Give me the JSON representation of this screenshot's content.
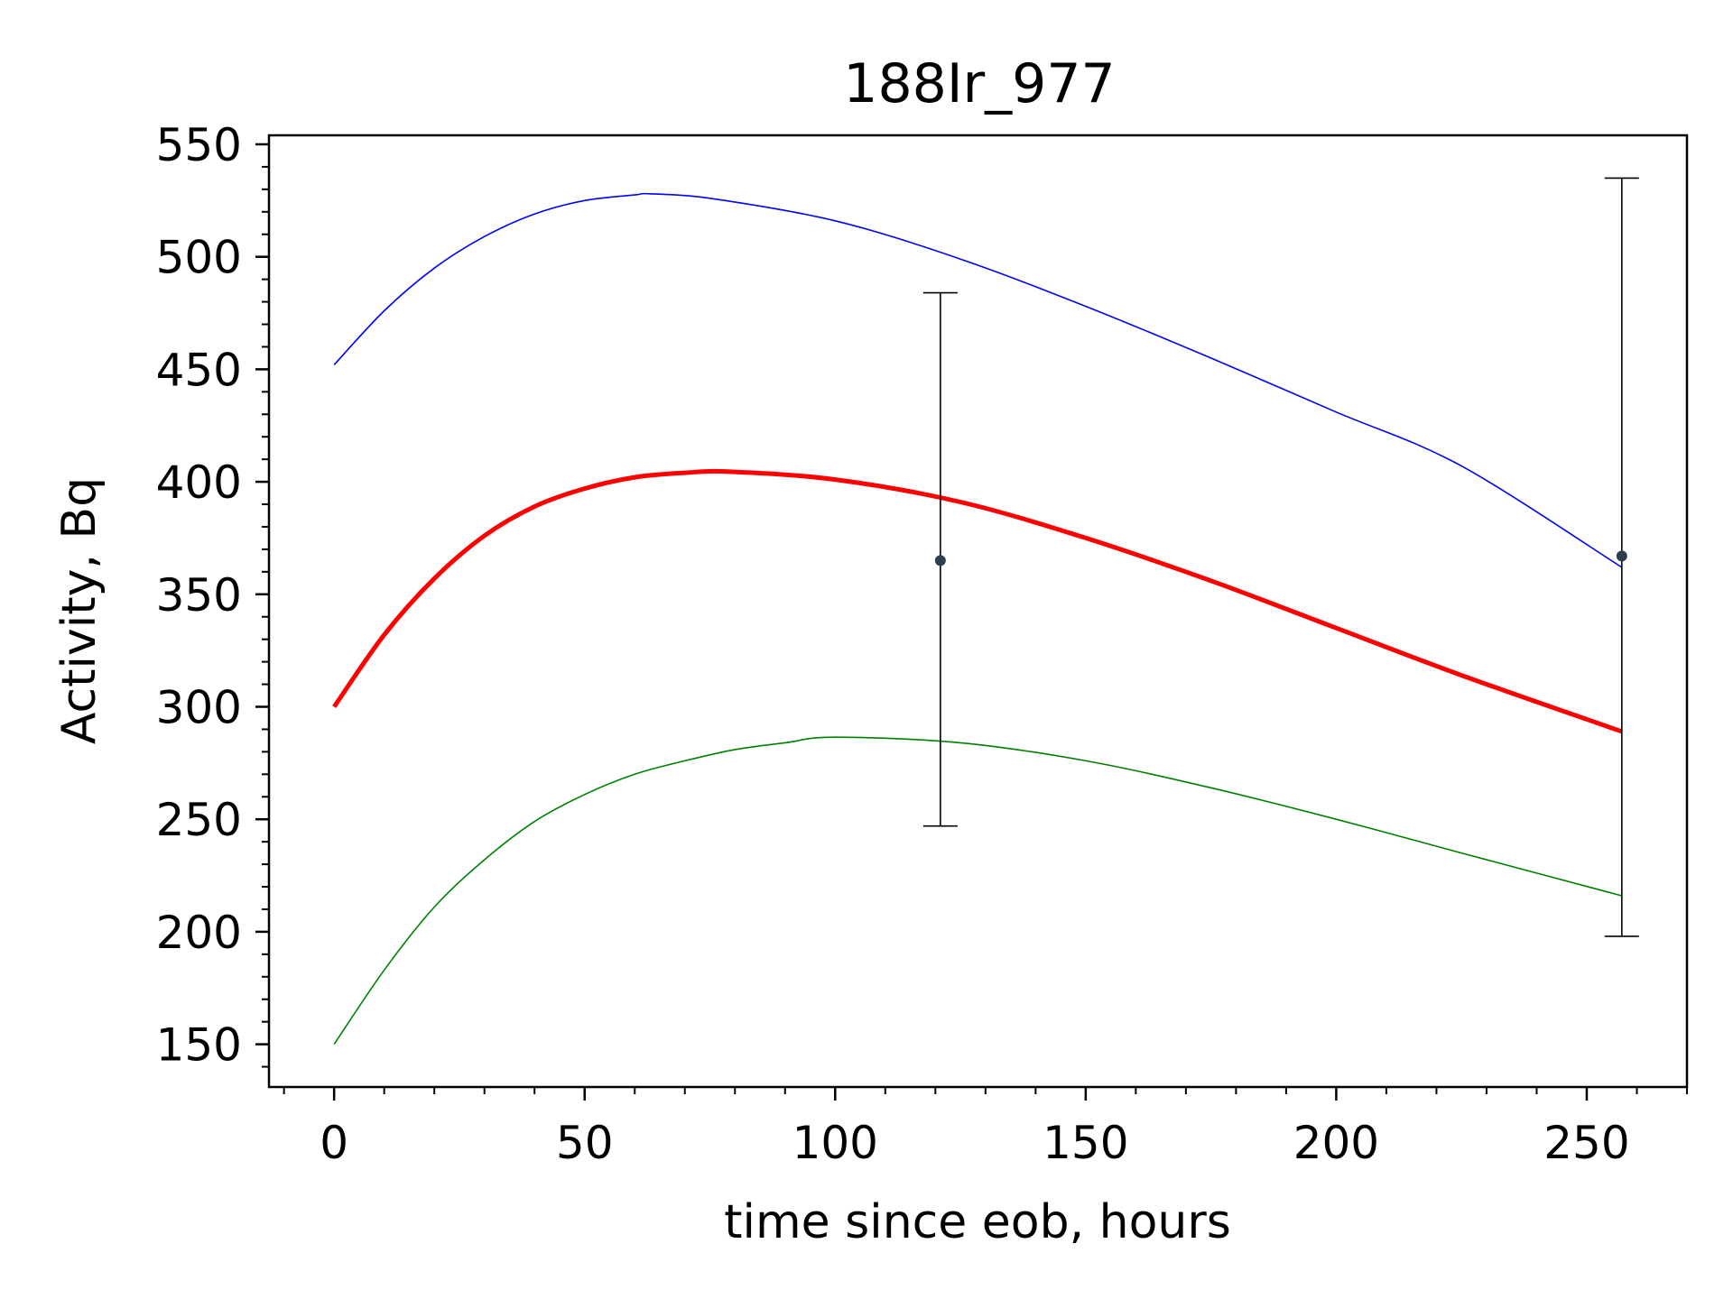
{
  "chart_data": {
    "type": "line",
    "title": "188Ir_977",
    "xlabel": "time since eob, hours",
    "ylabel": "Activity, Bq",
    "xlim": [
      -13,
      270
    ],
    "ylim": [
      131,
      554
    ],
    "xticks": [
      0,
      50,
      100,
      150,
      200,
      250
    ],
    "yticks": [
      150,
      200,
      250,
      300,
      350,
      400,
      450,
      500,
      550
    ],
    "x_minor_step": 10,
    "y_minor_step": 10,
    "grid": false,
    "legend": "none",
    "series": [
      {
        "color": "#0000ff",
        "style": "thin",
        "x": [
          0,
          10,
          20,
          30,
          40,
          50,
          60,
          63,
          75,
          100,
          125,
          150,
          175,
          200,
          225,
          257
        ],
        "y": [
          452,
          476,
          495,
          509,
          519,
          525,
          527.5,
          528,
          526,
          516,
          499,
          478,
          455,
          431,
          407,
          362
        ]
      },
      {
        "color": "#ff0000",
        "style": "thick",
        "x": [
          0,
          10,
          20,
          30,
          40,
          50,
          60,
          70,
          79,
          100,
          125,
          150,
          175,
          200,
          225,
          257
        ],
        "y": [
          300,
          332,
          357,
          376,
          389,
          397,
          402,
          404,
          404.5,
          401,
          391,
          375,
          356,
          335,
          314,
          289
        ]
      },
      {
        "color": "#008000",
        "style": "thin",
        "x": [
          0,
          10,
          20,
          30,
          40,
          50,
          60,
          70,
          80,
          90,
          100,
          125,
          150,
          175,
          200,
          225,
          257
        ],
        "y": [
          150,
          183,
          211,
          232,
          249,
          261,
          270,
          276,
          281,
          284,
          286.5,
          284,
          276,
          264,
          250,
          235,
          216
        ]
      }
    ],
    "measurements": [
      {
        "x": 121,
        "y": 365,
        "yerr_low": 247,
        "yerr_high": 484
      },
      {
        "x": 257,
        "y": 367,
        "yerr_low": 198,
        "yerr_high": 535
      }
    ],
    "colors": {
      "marker": "#2d3e50",
      "errorbar": "#000000",
      "axes": "#000000"
    }
  }
}
